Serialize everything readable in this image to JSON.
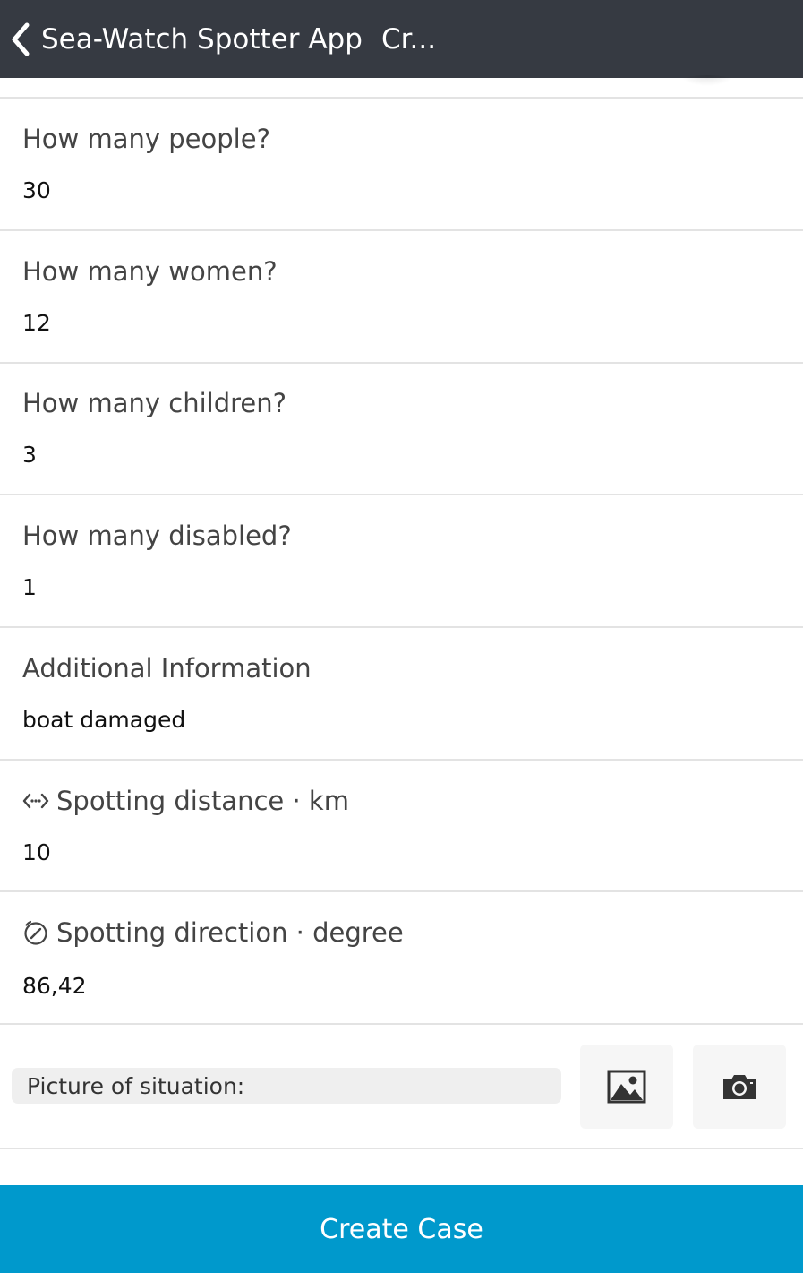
{
  "header": {
    "app_title": "Sea-Watch Spotter App",
    "page_title": "Cr...",
    "back_icon": "chevron-left-icon"
  },
  "fields": [
    {
      "label": "How many people?",
      "value": "30"
    },
    {
      "label": "How many women?",
      "value": "12"
    },
    {
      "label": "How many children?",
      "value": "3"
    },
    {
      "label": "How many disabled?",
      "value": "1"
    },
    {
      "label": "Additional Information",
      "value": "boat damaged"
    },
    {
      "label": "Spotting distance · km",
      "value": "10",
      "icon": "distance-arrows-icon"
    },
    {
      "label": "Spotting direction · degree",
      "value": "86,42",
      "icon": "compass-icon"
    }
  ],
  "picture": {
    "label": "Picture of situation:",
    "gallery_icon": "image-icon",
    "camera_icon": "camera-icon"
  },
  "footer": {
    "create_label": "Create Case"
  },
  "colors": {
    "header_bg": "#363a42",
    "accent": "#0099cc",
    "divider": "#e3e3e3"
  }
}
